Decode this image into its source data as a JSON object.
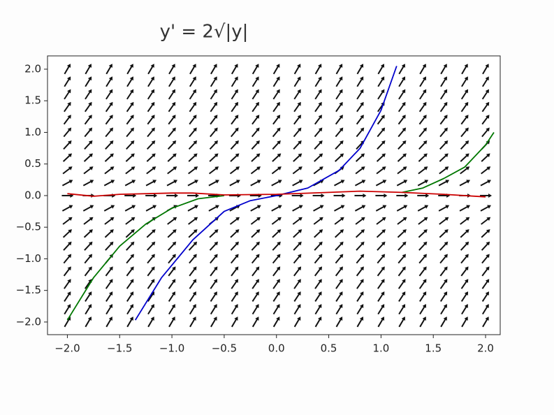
{
  "chart_data": {
    "type": "slope_field",
    "title": "y' = 2√|y|",
    "xlim": [
      -2.19,
      2.14
    ],
    "ylim": [
      -2.2,
      2.21
    ],
    "xticks": [
      {
        "value": -2,
        "label": "−2.0"
      },
      {
        "value": -1.5,
        "label": "−1.5"
      },
      {
        "value": -1,
        "label": "−1.0"
      },
      {
        "value": -0.5,
        "label": "−0.5"
      },
      {
        "value": 0,
        "label": "0.0"
      },
      {
        "value": 0.5,
        "label": "0.5"
      },
      {
        "value": 1,
        "label": "1.0"
      },
      {
        "value": 1.5,
        "label": "1.5"
      },
      {
        "value": 2,
        "label": "2.0"
      }
    ],
    "yticks": [
      {
        "value": -2,
        "label": "−2.0"
      },
      {
        "value": -1.5,
        "label": "−1.5"
      },
      {
        "value": -1,
        "label": "−1.0"
      },
      {
        "value": -0.5,
        "label": "−0.5"
      },
      {
        "value": 0,
        "label": "0.0"
      },
      {
        "value": 0.5,
        "label": "0.5"
      },
      {
        "value": 1,
        "label": "1.0"
      },
      {
        "value": 1.5,
        "label": "1.5"
      },
      {
        "value": 2,
        "label": "2.0"
      }
    ],
    "field": {
      "color": "#111111",
      "x": [
        -2,
        -1.8,
        -1.6,
        -1.4,
        -1.2,
        -1,
        -0.8,
        -0.6,
        -0.4,
        -0.2,
        0,
        0.2,
        0.4,
        0.6,
        0.8,
        1,
        1.2,
        1.4,
        1.6,
        1.8,
        2
      ],
      "y": [
        -2,
        -1.8,
        -1.6,
        -1.4,
        -1.2,
        -1,
        -0.8,
        -0.6,
        -0.4,
        -0.2,
        0,
        0.2,
        0.4,
        0.6,
        0.8,
        1,
        1.2,
        1.4,
        1.6,
        1.8,
        2
      ],
      "slopes": [
        2.83,
        2.68,
        2.53,
        2.37,
        2.19,
        2,
        1.79,
        1.55,
        1.26,
        0.89,
        0,
        0.89,
        1.26,
        1.55,
        1.79,
        2,
        2.19,
        2.37,
        2.53,
        2.68,
        2.83
      ]
    },
    "series": [
      {
        "color": "#0000cc",
        "x": [
          -1.35,
          -1.1,
          -0.8,
          -0.5,
          -0.25,
          0,
          0.3,
          0.6,
          0.8,
          1.0,
          1.15
        ],
        "values": [
          -1.97,
          -1.3,
          -0.7,
          -0.25,
          -0.08,
          0,
          0.12,
          0.4,
          0.75,
          1.35,
          2.05
        ]
      },
      {
        "color": "#007700",
        "x": [
          -2,
          -1.75,
          -1.5,
          -1.25,
          -1.0,
          -0.75,
          -0.5,
          0,
          1.2,
          1.4,
          1.6,
          1.8,
          2.0,
          2.08
        ],
        "values": [
          -1.97,
          -1.3,
          -0.8,
          -0.45,
          -0.2,
          -0.05,
          0,
          null,
          0.05,
          0.12,
          0.27,
          0.45,
          0.8,
          1.0
        ]
      },
      {
        "color": "#cc0000",
        "x": [
          -2,
          -1.75,
          -1.5,
          -1.0,
          -0.8,
          -0.5,
          0,
          0.5,
          0.8,
          1.2,
          1.6,
          2.0
        ],
        "values": [
          0.03,
          -0.01,
          0.02,
          0.04,
          0.04,
          0.01,
          0.02,
          0.05,
          0.07,
          0.05,
          0.02,
          -0.02
        ]
      }
    ]
  }
}
